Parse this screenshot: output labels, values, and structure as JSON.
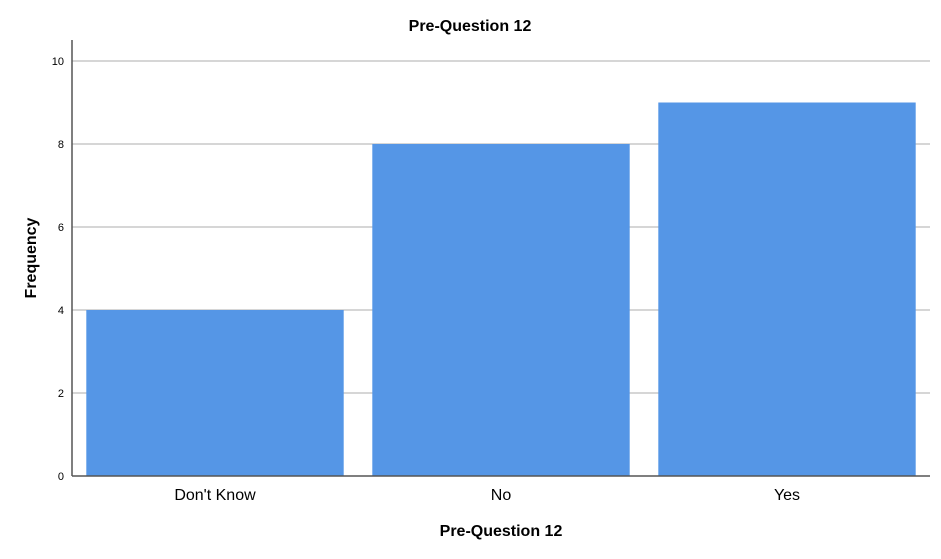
{
  "chart_data": {
    "type": "bar",
    "title": "Pre-Question 12",
    "xlabel": "Pre-Question 12",
    "ylabel": "Frequency",
    "categories": [
      "Don't Know",
      "No",
      "Yes"
    ],
    "values": [
      4,
      8,
      9
    ],
    "ylim": [
      0,
      10
    ],
    "yticks": [
      0,
      2,
      4,
      6,
      8,
      10
    ],
    "grid": true,
    "bar_color": "#5596e6",
    "grid_color": "#c8c8c8",
    "axis_color": "#555555"
  }
}
